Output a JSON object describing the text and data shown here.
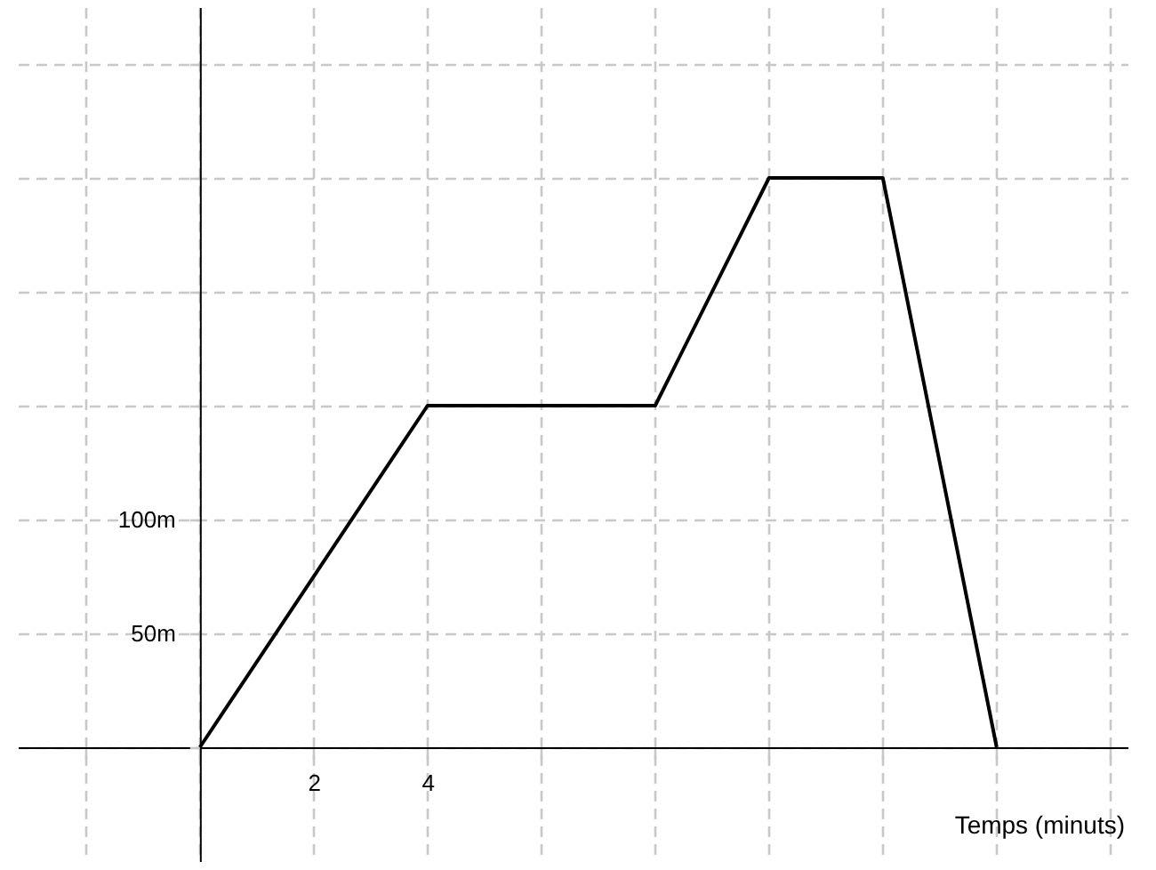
{
  "chart_data": {
    "type": "line",
    "xlabel": "Temps (minuts)",
    "x": [
      0,
      4,
      8,
      10,
      12,
      14
    ],
    "series": [
      {
        "color": "#000000",
        "values": [
          0,
          150,
          150,
          250,
          250,
          0
        ]
      }
    ],
    "xlim": [
      -3.2,
      16.3
    ],
    "ylim": [
      -50,
      325
    ],
    "xticks": [
      {
        "value": -2,
        "label": null
      },
      {
        "value": 0,
        "label": null
      },
      2,
      4,
      {
        "value": 6,
        "label": null
      },
      {
        "value": 8,
        "label": null
      },
      {
        "value": 10,
        "label": null
      },
      {
        "value": 12,
        "label": null
      },
      {
        "value": 14,
        "label": null
      },
      {
        "value": 16,
        "label": null
      }
    ],
    "yticks": [
      {
        "value": 0,
        "label": null
      },
      {
        "value": 50,
        "label": "50m"
      },
      {
        "value": 100,
        "label": "100m"
      },
      {
        "value": 150,
        "label": null
      },
      {
        "value": 200,
        "label": null
      },
      {
        "value": 250,
        "label": null
      },
      {
        "value": 300,
        "label": null
      }
    ],
    "grid": true
  }
}
